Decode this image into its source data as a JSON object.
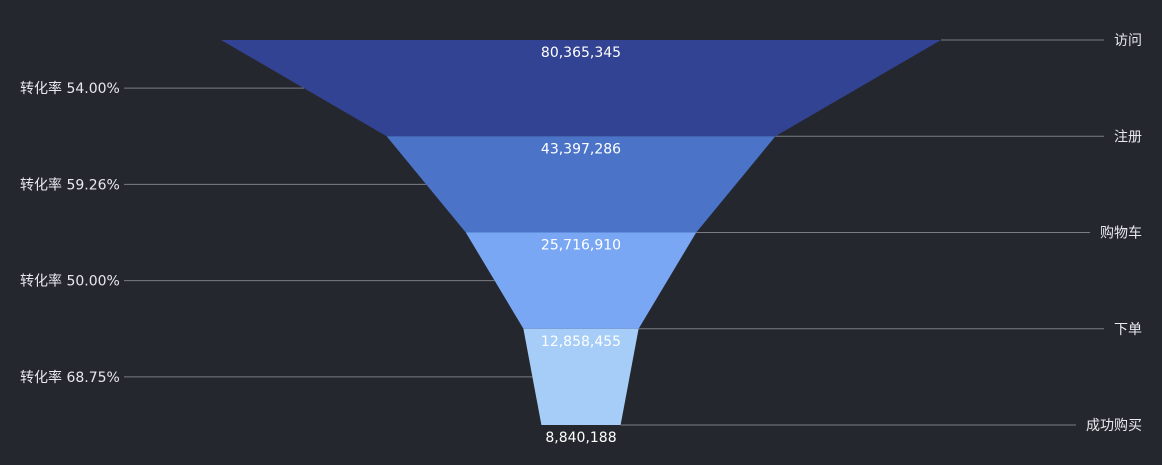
{
  "chart_data": {
    "type": "funnel",
    "title": "",
    "stages": [
      {
        "name": "访问",
        "value": 80365345,
        "value_label": "80,365,345",
        "color": "#334393"
      },
      {
        "name": "注册",
        "value": 43397286,
        "value_label": "43,397,286",
        "color": "#4b74c9"
      },
      {
        "name": "购物车",
        "value": 25716910,
        "value_label": "25,716,910",
        "color": "#79a7f3"
      },
      {
        "name": "下单",
        "value": 12858455,
        "value_label": "12,858,455",
        "color": "#a5cdf8"
      },
      {
        "name": "成功购买",
        "value": 8840188,
        "value_label": "8,840,188",
        "color": "#a5cdf8"
      }
    ],
    "conversion_rates": [
      {
        "label": "转化率 54.00%",
        "value": 54.0
      },
      {
        "label": "转化率 59.26%",
        "value": 59.26
      },
      {
        "label": "转化率 50.00%",
        "value": 50.0
      },
      {
        "label": "转化率 68.75%",
        "value": 68.75
      }
    ],
    "background": "#25272f",
    "leader_color": "#7b7d83"
  }
}
